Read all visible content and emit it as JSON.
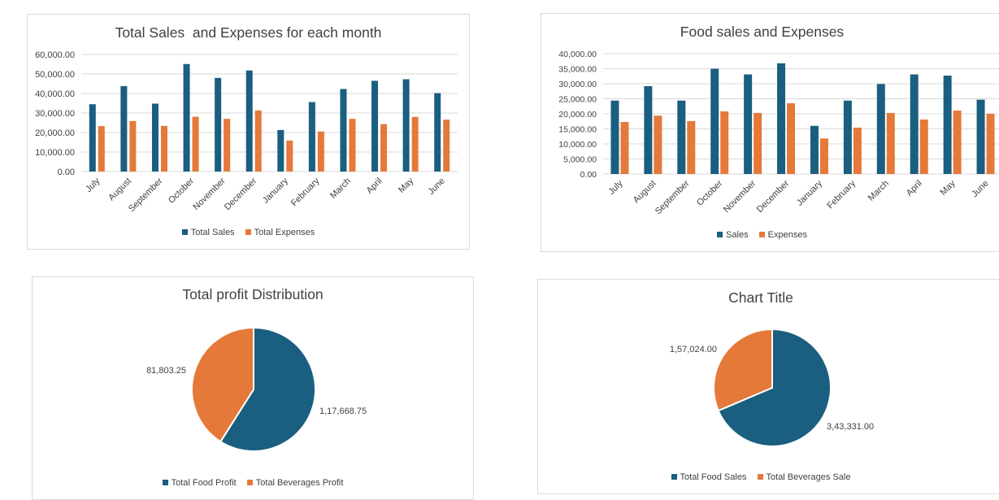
{
  "colors": {
    "primary": "#1a5e80",
    "secondary": "#e5793a",
    "grid": "#d9d9d9",
    "text": "#404040"
  },
  "chart_data": [
    {
      "type": "bar",
      "title": "Total Sales  and Expenses for each month",
      "categories": [
        "July",
        "August",
        "September",
        "October",
        "November",
        "December",
        "January",
        "February",
        "March",
        "April",
        "May",
        "June"
      ],
      "series": [
        {
          "name": "Total Sales",
          "values": [
            34500,
            43800,
            34800,
            55100,
            48000,
            51800,
            21300,
            35600,
            42300,
            46500,
            47300,
            40200
          ]
        },
        {
          "name": "Total Expenses",
          "values": [
            23300,
            25900,
            23400,
            28100,
            27000,
            31300,
            15900,
            20500,
            27000,
            24300,
            28000,
            26600
          ]
        }
      ],
      "yticks": [
        "0.00",
        "10,000.00",
        "20,000.00",
        "30,000.00",
        "40,000.00",
        "50,000.00",
        "60,000.00"
      ],
      "ylim": [
        0,
        60000
      ],
      "grid": true,
      "legend": "bottom"
    },
    {
      "type": "bar",
      "title": "Food sales and Expenses",
      "categories": [
        "July",
        "August",
        "September",
        "October",
        "November",
        "December",
        "January",
        "February",
        "March",
        "April",
        "May",
        "June"
      ],
      "series": [
        {
          "name": "Sales",
          "values": [
            24400,
            29200,
            24400,
            35000,
            33100,
            36800,
            16000,
            24400,
            29900,
            33100,
            32700,
            24700
          ]
        },
        {
          "name": "Expenses",
          "values": [
            17300,
            19400,
            17600,
            20800,
            20300,
            23500,
            11800,
            15400,
            20300,
            18100,
            21100,
            20000
          ]
        }
      ],
      "yticks": [
        "0.00",
        "5,000.00",
        "10,000.00",
        "15,000.00",
        "20,000.00",
        "25,000.00",
        "30,000.00",
        "35,000.00",
        "40,000.00"
      ],
      "ylim": [
        0,
        40000
      ],
      "grid": true,
      "legend": "bottom"
    },
    {
      "type": "pie",
      "title": "Total profit Distribution",
      "labels": [
        "Total Food Profit",
        "Total Beverages Profit"
      ],
      "values": [
        117668.75,
        81803.25
      ],
      "data_labels": [
        "1,17,668.75",
        "81,803.25"
      ],
      "legend": "bottom"
    },
    {
      "type": "pie",
      "title": "Chart Title",
      "labels": [
        "Total Food Sales",
        "Total Beverages Sale"
      ],
      "values": [
        343331.0,
        157024.0
      ],
      "data_labels": [
        "3,43,331.00",
        "1,57,024.00"
      ],
      "legend": "bottom"
    }
  ]
}
